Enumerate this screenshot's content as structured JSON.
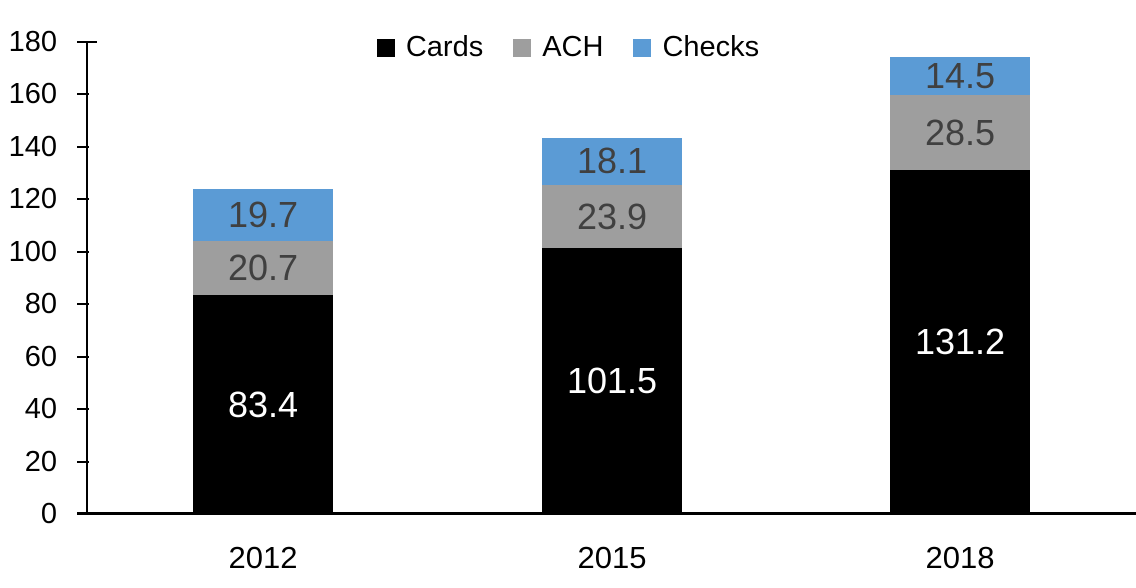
{
  "chart_data": {
    "type": "bar",
    "stacked": true,
    "title": "",
    "categories": [
      "2012",
      "2015",
      "2018"
    ],
    "series": [
      {
        "name": "Cards",
        "color": "#000000",
        "label_color": "#ffffff",
        "values": [
          83.4,
          101.5,
          131.2
        ]
      },
      {
        "name": "ACH",
        "color": "#9e9e9e",
        "label_color": "#404040",
        "values": [
          20.7,
          23.9,
          28.5
        ]
      },
      {
        "name": "Checks",
        "color": "#5b9bd5",
        "label_color": "#404040",
        "values": [
          19.7,
          18.1,
          14.5
        ]
      }
    ],
    "y_axis": {
      "min": 0,
      "max": 180,
      "step": 20,
      "tick_labels": [
        "0",
        "20",
        "40",
        "60",
        "80",
        "100",
        "120",
        "140",
        "160",
        "180"
      ]
    },
    "legend": {
      "position": "top",
      "entries": [
        "Cards",
        "ACH",
        "Checks"
      ]
    },
    "grid": false,
    "background": "#ffffff",
    "axis_color": "#000000"
  }
}
